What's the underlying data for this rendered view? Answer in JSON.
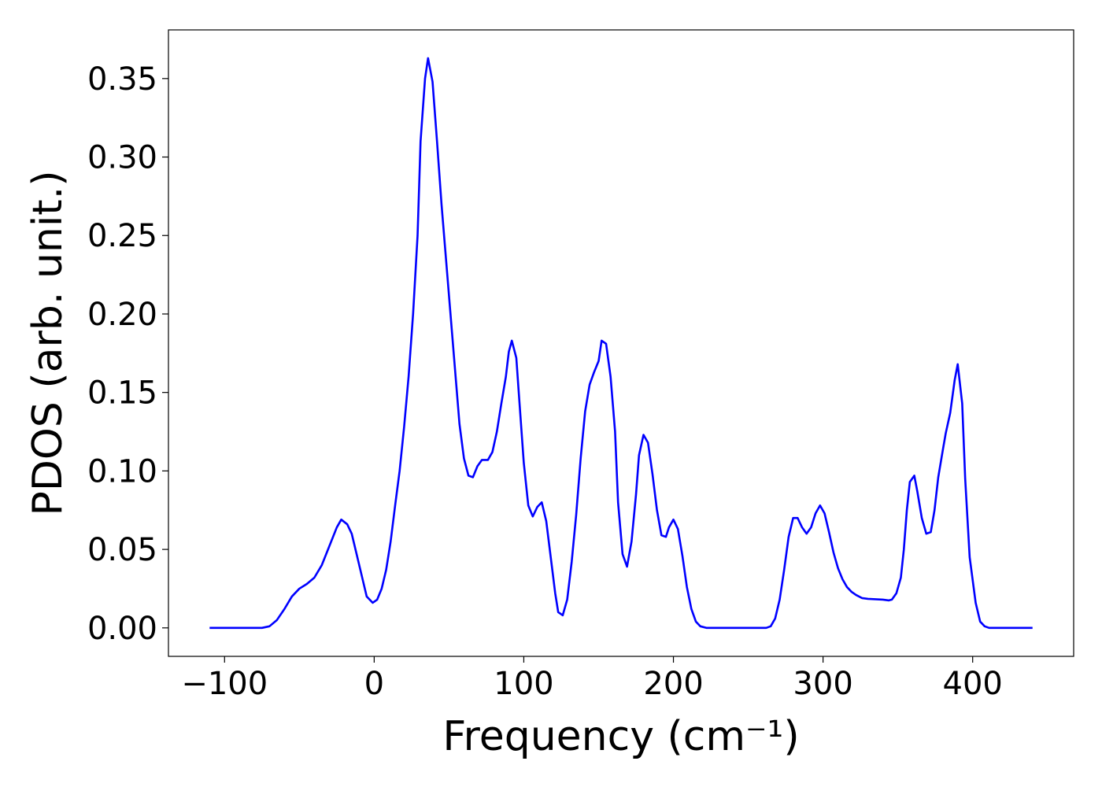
{
  "chart_data": {
    "type": "line",
    "xlabel": "Frequency (cm⁻¹)",
    "ylabel": "PDOS (arb. unit.)",
    "x": [
      -110,
      -75,
      -70,
      -65,
      -60,
      -55,
      -50,
      -45,
      -40,
      -35,
      -30,
      -25,
      -22,
      -18,
      -15,
      -12,
      -8,
      -5,
      -1,
      2,
      5,
      8,
      11,
      14,
      17,
      20,
      23,
      26,
      29,
      31,
      34,
      36,
      39,
      42,
      45,
      48,
      51,
      54,
      57,
      60,
      63,
      66,
      69,
      72,
      76,
      79,
      82,
      85,
      88,
      90,
      92,
      95,
      97,
      100,
      103,
      106,
      109,
      112,
      115,
      118,
      121,
      123,
      126,
      129,
      132,
      135,
      138,
      141,
      144,
      147,
      150,
      152,
      155,
      158,
      161,
      163,
      166,
      169,
      172,
      175,
      177,
      180,
      183,
      186,
      189,
      192,
      195,
      197,
      200,
      203,
      206,
      209,
      212,
      215,
      218,
      222,
      262,
      265,
      268,
      271,
      274,
      277,
      280,
      283,
      286,
      289,
      292,
      295,
      298,
      301,
      304,
      307,
      310,
      313,
      316,
      319,
      322,
      326,
      330,
      340,
      344,
      346,
      349,
      352,
      354,
      356,
      358,
      361,
      363,
      366,
      369,
      372,
      374.5,
      377,
      380,
      382,
      385,
      388,
      390,
      393,
      395,
      398,
      402,
      405,
      408,
      411,
      440
    ],
    "series": [
      {
        "name": null,
        "color": "#0000ff",
        "values": [
          0,
          0,
          0.001,
          0.005,
          0.012,
          0.02,
          0.025,
          0.028,
          0.032,
          0.04,
          0.052,
          0.064,
          0.069,
          0.066,
          0.06,
          0.048,
          0.032,
          0.02,
          0.016,
          0.018,
          0.025,
          0.037,
          0.055,
          0.078,
          0.1,
          0.128,
          0.16,
          0.2,
          0.25,
          0.31,
          0.35,
          0.363,
          0.348,
          0.31,
          0.27,
          0.235,
          0.2,
          0.165,
          0.13,
          0.108,
          0.097,
          0.096,
          0.103,
          0.107,
          0.107,
          0.112,
          0.125,
          0.143,
          0.16,
          0.176,
          0.183,
          0.172,
          0.145,
          0.105,
          0.078,
          0.071,
          0.077,
          0.08,
          0.068,
          0.045,
          0.022,
          0.01,
          0.008,
          0.018,
          0.042,
          0.072,
          0.108,
          0.138,
          0.155,
          0.163,
          0.17,
          0.183,
          0.181,
          0.16,
          0.125,
          0.08,
          0.047,
          0.039,
          0.055,
          0.085,
          0.11,
          0.123,
          0.118,
          0.098,
          0.075,
          0.059,
          0.058,
          0.064,
          0.069,
          0.063,
          0.046,
          0.026,
          0.012,
          0.004,
          0.001,
          0,
          0,
          0.001,
          0.006,
          0.018,
          0.037,
          0.058,
          0.07,
          0.07,
          0.064,
          0.06,
          0.064,
          0.073,
          0.078,
          0.073,
          0.061,
          0.048,
          0.038,
          0.031,
          0.026,
          0.023,
          0.021,
          0.019,
          0.0185,
          0.018,
          0.0175,
          0.018,
          0.022,
          0.032,
          0.05,
          0.075,
          0.093,
          0.097,
          0.087,
          0.07,
          0.06,
          0.061,
          0.075,
          0.096,
          0.113,
          0.124,
          0.137,
          0.158,
          0.168,
          0.143,
          0.095,
          0.045,
          0.016,
          0.004,
          0.001,
          0,
          0
        ]
      }
    ],
    "xlim": [
      -137.5,
      467.5
    ],
    "xticks": [
      {
        "value": -100,
        "label": "−100"
      },
      0,
      100,
      200,
      300,
      400
    ],
    "ylim": [
      -0.01815,
      0.381
    ],
    "yticks": [
      {
        "value": 0,
        "label": "0.00"
      },
      {
        "value": 0.05,
        "label": "0.05"
      },
      {
        "value": 0.1,
        "label": "0.10"
      },
      {
        "value": 0.15,
        "label": "0.15"
      },
      {
        "value": 0.2,
        "label": "0.20"
      },
      {
        "value": 0.25,
        "label": "0.25"
      },
      {
        "value": 0.3,
        "label": "0.30"
      },
      {
        "value": 0.35,
        "label": "0.35"
      }
    ],
    "grid": false
  }
}
